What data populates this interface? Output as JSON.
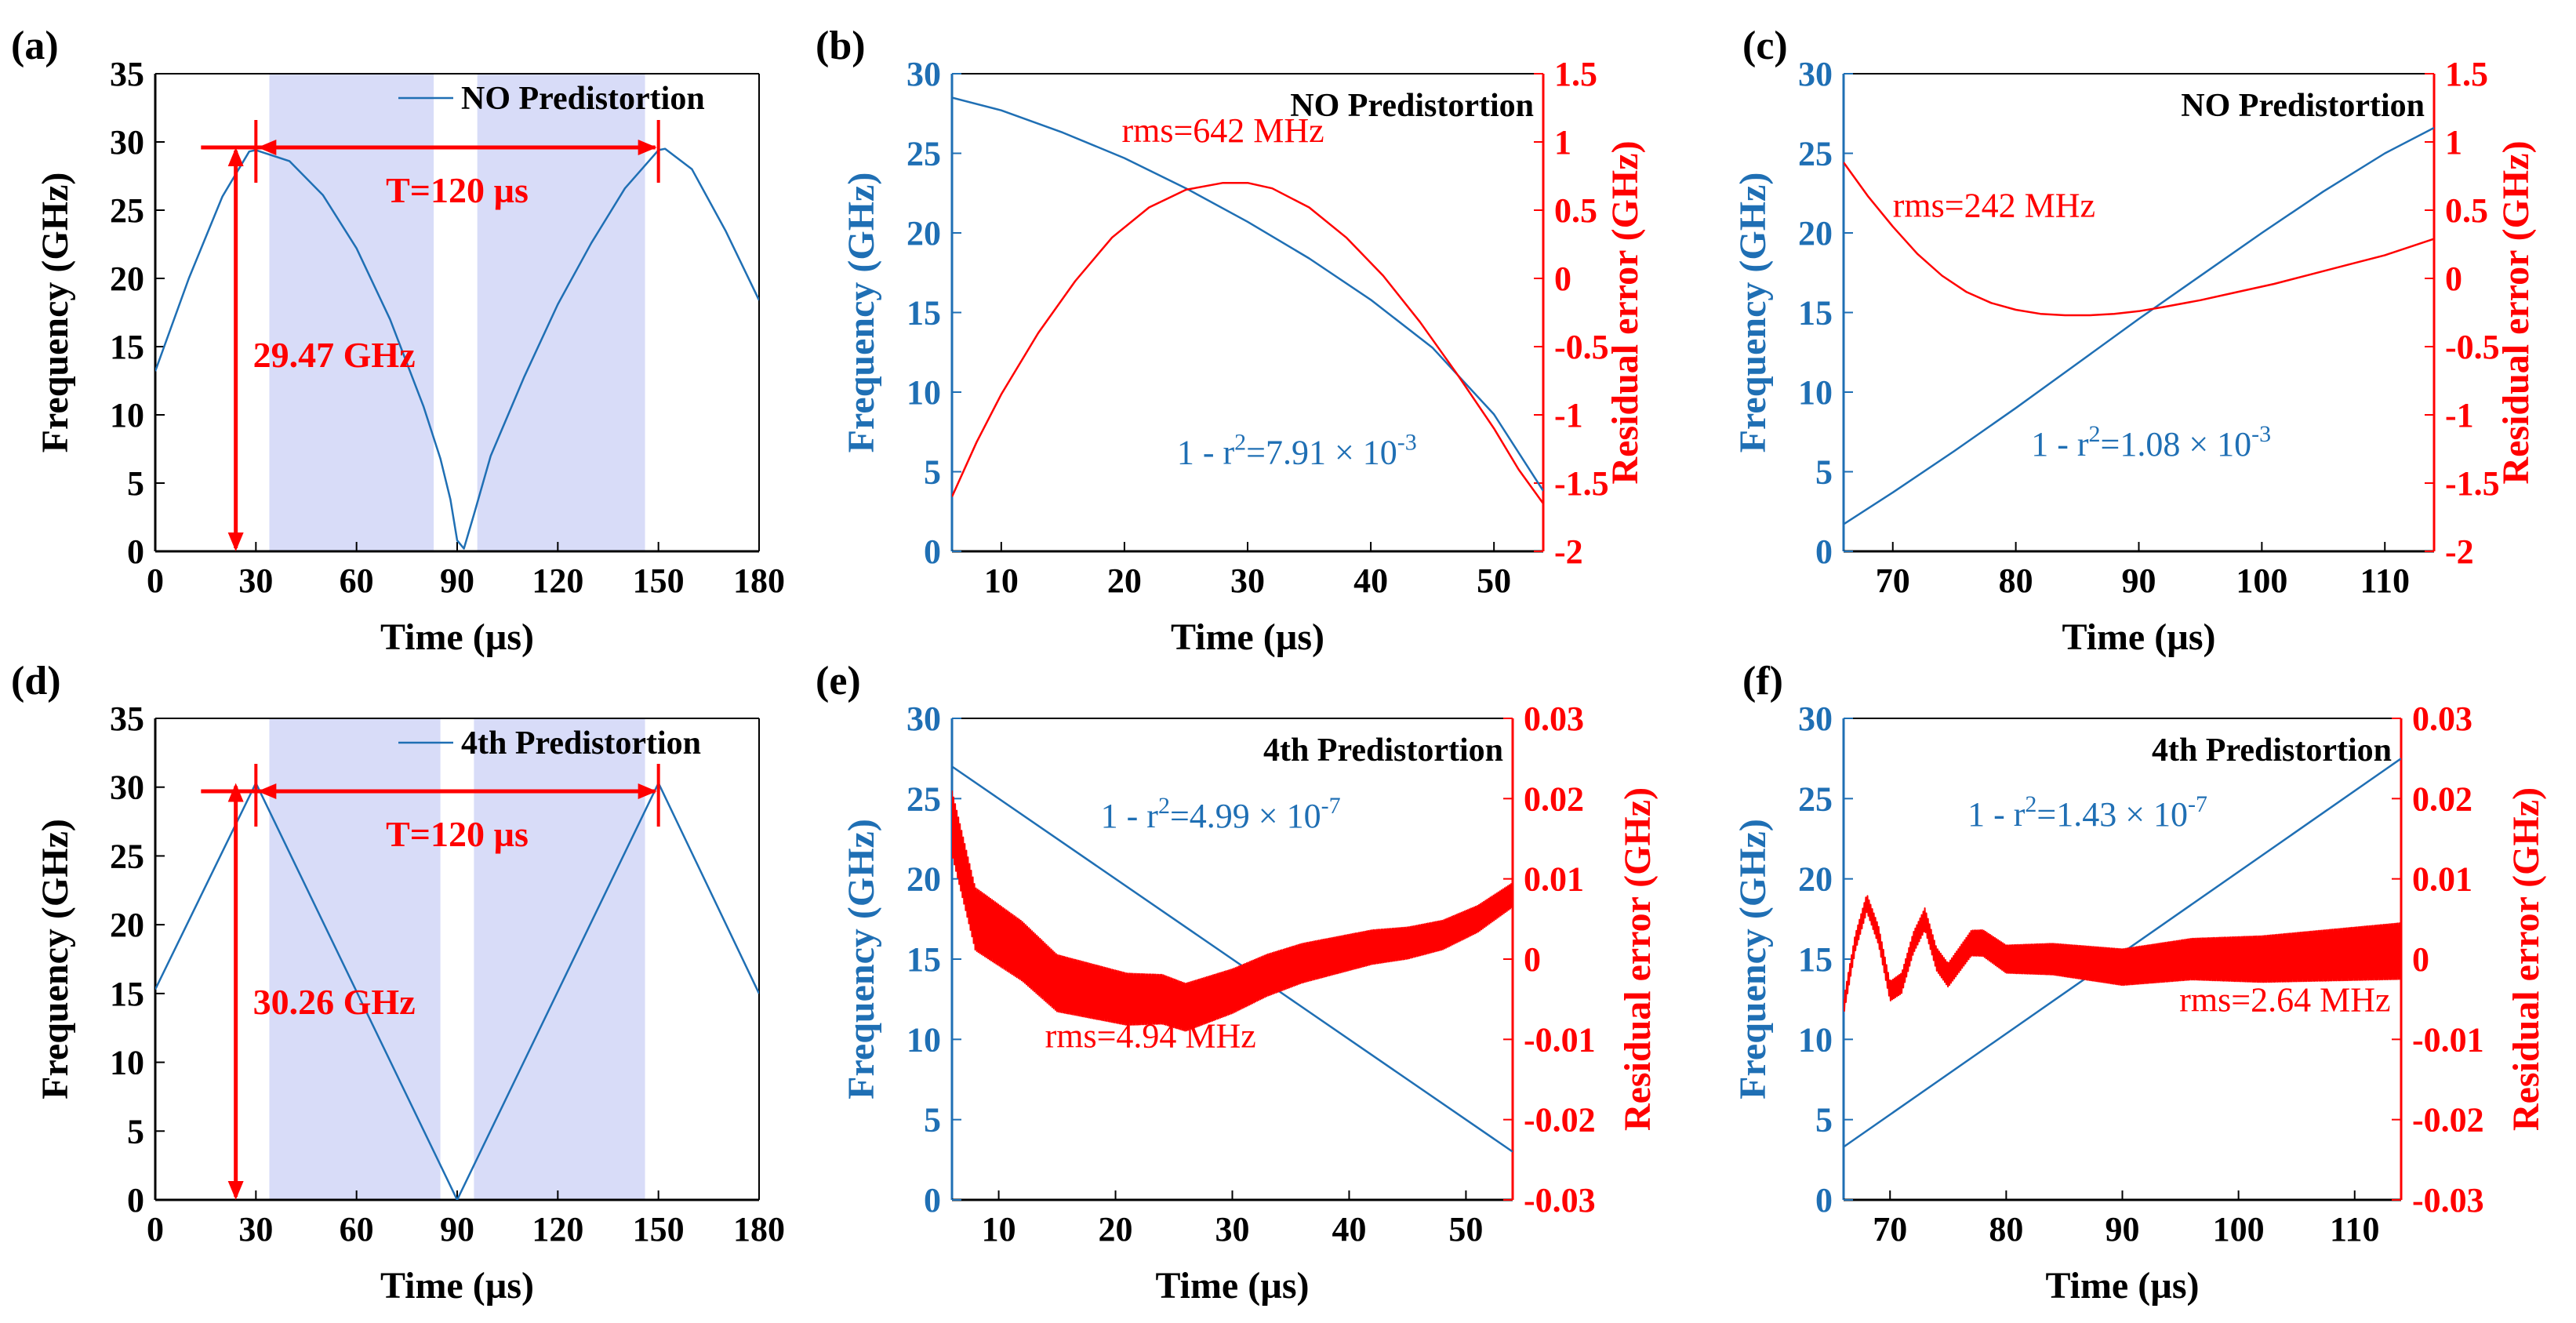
{
  "colors": {
    "blue": "#1f6fb4",
    "red": "#ff0000",
    "shade": "#d8dcf8",
    "axis": "#000000"
  },
  "chart_data": [
    {
      "panel": "(a)",
      "type": "line",
      "legend": "NO Predistortion",
      "legend_position": "top-right",
      "xlabel": "Time (µs)",
      "ylabel": "Frequency (GHz)",
      "xlim": [
        0,
        180
      ],
      "ylim": [
        0,
        35
      ],
      "xticks": [
        0,
        30,
        60,
        90,
        120,
        150,
        180
      ],
      "yticks": [
        0,
        5,
        10,
        15,
        20,
        25,
        30,
        35
      ],
      "series": [
        {
          "name": "NO Predistortion",
          "x": [
            0,
            10,
            20,
            28,
            30,
            40,
            50,
            60,
            70,
            80,
            85,
            88,
            90,
            92,
            95,
            100,
            110,
            120,
            130,
            140,
            150,
            152,
            160,
            170,
            180
          ],
          "y": [
            13.2,
            20,
            26,
            29.3,
            29.4,
            28.6,
            26.1,
            22.2,
            17.0,
            10.6,
            6.8,
            3.8,
            0.8,
            0.2,
            2.7,
            7.0,
            12.8,
            18.1,
            22.6,
            26.6,
            29.4,
            29.5,
            28.0,
            23.5,
            18.4
          ]
        }
      ],
      "shaded_regions": [
        [
          34,
          83
        ],
        [
          96,
          146
        ]
      ],
      "annotations": {
        "period_label": "T=120 µs",
        "period_x": [
          30,
          150
        ],
        "period_y": 29.6,
        "amplitude_label": "29.47 GHz",
        "amplitude_x": 24,
        "amplitude_y": [
          0,
          29.6
        ]
      }
    },
    {
      "panel": "(b)",
      "type": "line",
      "legend": "NO Predistortion",
      "xlabel": "Time (µs)",
      "ylabel": "Frequency (GHz)",
      "ylabel_right": "Residual error (GHz)",
      "xlim": [
        6,
        54
      ],
      "ylim": [
        0,
        30
      ],
      "ylim_right": [
        -2,
        1.5
      ],
      "xticks": [
        10,
        20,
        30,
        40,
        50
      ],
      "yticks": [
        0,
        5,
        10,
        15,
        20,
        25,
        30
      ],
      "yticks_right": [
        "-2",
        "-1.5",
        "-1",
        "-0.5",
        "0",
        "0.5",
        "1",
        "1.5"
      ],
      "annotations": {
        "rms_label": "rms=642 MHz",
        "fit_prefix": "1 - r",
        "fit_exp": "2",
        "fit_value": "=7.91 × 10",
        "fit_power": "-3"
      },
      "series": [
        {
          "axis": "left",
          "x": [
            6,
            10,
            15,
            20,
            25,
            30,
            35,
            40,
            45,
            50,
            54
          ],
          "y": [
            28.5,
            27.7,
            26.3,
            24.7,
            22.8,
            20.7,
            18.4,
            15.8,
            12.8,
            8.6,
            3.8
          ]
        },
        {
          "axis": "right",
          "x": [
            6,
            8,
            10,
            13,
            16,
            19,
            22,
            25,
            28,
            30,
            32,
            35,
            38,
            41,
            44,
            47,
            50,
            52,
            54
          ],
          "y": [
            -1.6,
            -1.2,
            -0.85,
            -0.4,
            -0.02,
            0.3,
            0.52,
            0.65,
            0.7,
            0.7,
            0.66,
            0.52,
            0.3,
            0.02,
            -0.32,
            -0.7,
            -1.1,
            -1.4,
            -1.65
          ]
        }
      ]
    },
    {
      "panel": "(c)",
      "type": "line",
      "legend": "NO Predistortion",
      "xlabel": "Time (µs)",
      "ylabel": "Frequency (GHz)",
      "ylabel_right": "Residual error (GHz)",
      "xlim": [
        66,
        114
      ],
      "ylim": [
        0,
        30
      ],
      "ylim_right": [
        -2,
        1.5
      ],
      "xticks": [
        70,
        80,
        90,
        100,
        110
      ],
      "yticks": [
        0,
        5,
        10,
        15,
        20,
        25,
        30
      ],
      "yticks_right": [
        "-2",
        "-1.5",
        "-1",
        "-0.5",
        "0",
        "0.5",
        "1",
        "1.5"
      ],
      "annotations": {
        "rms_label": "rms=242 MHz",
        "fit_prefix": "1 - r",
        "fit_exp": "2",
        "fit_value": "=1.08 × 10",
        "fit_power": "-3"
      },
      "series": [
        {
          "axis": "left",
          "x": [
            66,
            70,
            75,
            80,
            85,
            90,
            95,
            100,
            105,
            110,
            114
          ],
          "y": [
            1.7,
            3.7,
            6.3,
            9.0,
            11.8,
            14.6,
            17.3,
            20.0,
            22.6,
            25.0,
            26.6
          ]
        },
        {
          "axis": "right",
          "x": [
            66,
            68,
            70,
            72,
            74,
            76,
            78,
            80,
            82,
            84,
            86,
            88,
            90,
            92,
            95,
            98,
            101,
            104,
            107,
            110,
            114
          ],
          "y": [
            0.85,
            0.6,
            0.38,
            0.18,
            0.02,
            -0.1,
            -0.18,
            -0.23,
            -0.26,
            -0.27,
            -0.27,
            -0.26,
            -0.24,
            -0.21,
            -0.16,
            -0.1,
            -0.04,
            0.03,
            0.1,
            0.17,
            0.29
          ]
        }
      ]
    },
    {
      "panel": "(d)",
      "type": "line",
      "legend": "4th Predistortion",
      "legend_position": "top-right",
      "xlabel": "Time (µs)",
      "ylabel": "Frequency (GHz)",
      "xlim": [
        0,
        180
      ],
      "ylim": [
        0,
        35
      ],
      "xticks": [
        0,
        30,
        60,
        90,
        120,
        150,
        180
      ],
      "yticks": [
        0,
        5,
        10,
        15,
        20,
        25,
        30,
        35
      ],
      "series": [
        {
          "name": "4th Predistortion",
          "x": [
            0,
            30,
            90,
            150,
            180
          ],
          "y": [
            15.3,
            30.3,
            0,
            30.3,
            15.0
          ]
        }
      ],
      "shaded_regions": [
        [
          34,
          85
        ],
        [
          95,
          146
        ]
      ],
      "annotations": {
        "period_label": "T=120 µs",
        "period_x": [
          30,
          150
        ],
        "period_y": 29.7,
        "amplitude_label": "30.26 GHz",
        "amplitude_x": 24,
        "amplitude_y": [
          0,
          30.3
        ]
      }
    },
    {
      "panel": "(e)",
      "type": "line",
      "legend": "4th Predistortion",
      "xlabel": "Time (µs)",
      "ylabel": "Frequency (GHz)",
      "ylabel_right": "Residual error (GHz)",
      "xlim": [
        6,
        54
      ],
      "ylim": [
        0,
        30
      ],
      "ylim_right": [
        -0.03,
        0.03
      ],
      "xticks": [
        10,
        20,
        30,
        40,
        50
      ],
      "yticks": [
        0,
        5,
        10,
        15,
        20,
        25,
        30
      ],
      "yticks_right": [
        "-0.03",
        "-0.02",
        "-0.01",
        "0",
        "0.01",
        "0.02",
        "0.03"
      ],
      "annotations": {
        "rms_label": "rms=4.94 MHz",
        "fit_prefix": "1 - r",
        "fit_exp": "2",
        "fit_value": "=4.99 × 10",
        "fit_power": "-7"
      },
      "series": [
        {
          "axis": "left",
          "x": [
            6,
            54
          ],
          "y": [
            27.0,
            3.0
          ]
        },
        {
          "axis": "right",
          "x": [
            6,
            8,
            10,
            12,
            15,
            18,
            21,
            24,
            26,
            28,
            30,
            33,
            36,
            39,
            42,
            45,
            48,
            51,
            54
          ],
          "y": [
            0.017,
            0.005,
            0.003,
            0.001,
            -0.003,
            -0.004,
            -0.005,
            -0.005,
            -0.006,
            -0.005,
            -0.004,
            -0.002,
            -0.0005,
            0.0005,
            0.0015,
            0.002,
            0.003,
            0.005,
            0.008
          ],
          "oscillation_amplitude": [
            0.004,
            0.0015
          ]
        }
      ]
    },
    {
      "panel": "(f)",
      "type": "line",
      "legend": "4th Predistortion",
      "xlabel": "Time (µs)",
      "ylabel": "Frequency (GHz)",
      "ylabel_right": "Residual error (GHz)",
      "xlim": [
        66,
        114
      ],
      "ylim": [
        0,
        30
      ],
      "ylim_right": [
        -0.03,
        0.03
      ],
      "xticks": [
        70,
        80,
        90,
        100,
        110
      ],
      "yticks": [
        0,
        5,
        10,
        15,
        20,
        25,
        30
      ],
      "yticks_right": [
        "-0.03",
        "-0.02",
        "-0.01",
        "0",
        "0.01",
        "0.02",
        "0.03"
      ],
      "annotations": {
        "rms_label": "rms=2.64 MHz",
        "fit_prefix": "1 - r",
        "fit_exp": "2",
        "fit_value": "=1.43 × 10",
        "fit_power": "-7"
      },
      "series": [
        {
          "axis": "left",
          "x": [
            66,
            114
          ],
          "y": [
            3.3,
            27.5
          ]
        },
        {
          "axis": "right",
          "x": [
            66,
            67,
            68,
            69,
            70,
            71,
            72,
            73,
            74,
            75,
            76,
            77,
            78,
            80,
            84,
            90,
            96,
            102,
            108,
            114
          ],
          "y": [
            -0.006,
            0.002,
            0.007,
            0.003,
            -0.004,
            -0.003,
            0.002,
            0.005,
            0.0,
            -0.002,
            0.0,
            0.002,
            0.002,
            0.0,
            0.0,
            -0.001,
            0.0,
            0.0,
            0.0005,
            0.001
          ],
          "oscillation_amplitude": [
            0.001,
            0.0035
          ]
        }
      ]
    }
  ]
}
